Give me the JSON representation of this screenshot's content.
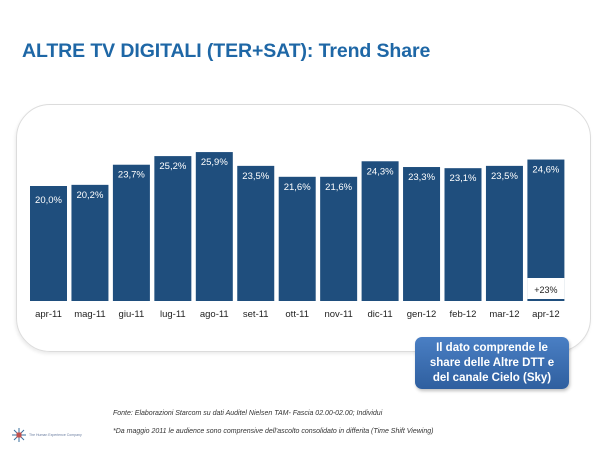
{
  "title": "ALTRE TV DIGITALI (TER+SAT): Trend Share",
  "chart_data": {
    "type": "bar",
    "categories": [
      "apr-11",
      "mag-11",
      "giu-11",
      "lug-11",
      "ago-11",
      "set-11",
      "ott-11",
      "nov-11",
      "dic-11",
      "gen-12",
      "feb-12",
      "mar-12",
      "apr-12"
    ],
    "values": [
      20.0,
      20.2,
      23.7,
      25.2,
      25.9,
      23.5,
      21.6,
      21.6,
      24.3,
      23.3,
      23.1,
      23.5,
      24.6
    ],
    "data_labels": [
      "20,0%",
      "20,2%",
      "23,7%",
      "25,2%",
      "25,9%",
      "23,5%",
      "21,6%",
      "21,6%",
      "24,3%",
      "23,3%",
      "23,1%",
      "23,5%",
      "24,6%"
    ],
    "annotation": "+23%",
    "ylim": [
      0,
      27
    ],
    "grid": false,
    "bar_color": "#1f4e7d",
    "title": "",
    "xlabel": "",
    "ylabel": ""
  },
  "callout": "Il dato comprende le share delle Altre DTT e del canale Cielo (Sky)",
  "footnotes": {
    "source": "Fonte: Elaborazioni Starcom su dati Auditel Nielsen TAM- Fascia 02.00-02.00; Individui",
    "note": "*Da maggio 2011 le audience sono comprensive dell'ascolto consolidato in differita (Time Shift Viewing)"
  },
  "logo_text": "The Human Experience Company"
}
